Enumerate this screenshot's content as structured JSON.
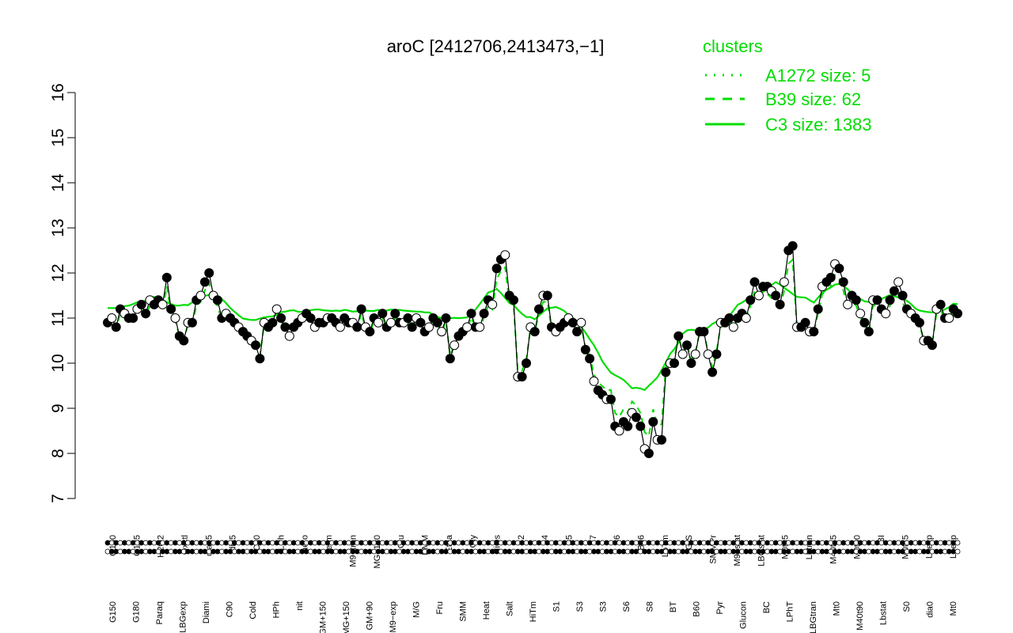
{
  "chart_data": {
    "type": "line",
    "title": "aroC [2412706,2413473,−1]",
    "ylim": [
      7,
      16
    ],
    "yticks": [
      7,
      8,
      9,
      10,
      11,
      12,
      13,
      14,
      15,
      16
    ],
    "xlabels_top": [
      "G150",
      "G135",
      "H2O2",
      "Oxctl",
      "dia15",
      "dia5",
      "C30",
      "LPh",
      "aero",
      "ferm",
      "M9−tran",
      "MG+120",
      "Glu",
      "BMM",
      "Etha",
      "Gly",
      "HiOs",
      "S2",
      "S4",
      "S5",
      "S7",
      "S6",
      "B36",
      "LoTm",
      "G/S",
      "SMMPr",
      "M9−stat",
      "LBGstat",
      "M0t45",
      "Lbtran",
      "M40t45",
      "M0t90",
      "BI",
      "M0t45",
      "Lbexp",
      "Lbexp"
    ],
    "xlabels_bottom": [
      "G150",
      "G180",
      "Paraq",
      "LBGexp",
      "Diami",
      "C90",
      "Cold",
      "HPh",
      "nit",
      "GM+150",
      "MG+150",
      "GM+90",
      "M9−exp",
      "M/G",
      "Fru",
      "SMM",
      "Heat",
      "Salt",
      "HiTm",
      "S1",
      "S3",
      "S3",
      "S6",
      "S8",
      "BT",
      "B60",
      "Pyr",
      "Glucon",
      "BC",
      "LPhT",
      "LBGtran",
      "Mt0",
      "M40t90",
      "Lbstat",
      "S0",
      "dia0",
      "Mt0"
    ],
    "legend": {
      "title": "clusters",
      "entries": [
        {
          "label": "A1272 size: 5",
          "style": "dotted"
        },
        {
          "label": "B39 size: 62",
          "style": "dashed"
        },
        {
          "label": "C3 size: 1383",
          "style": "solid"
        }
      ],
      "color": "#00dd00",
      "placement": "top-right"
    },
    "series_profile": [
      10.9,
      11.0,
      10.8,
      11.2,
      11.1,
      11.0,
      11.0,
      11.2,
      11.3,
      11.1,
      11.4,
      11.3,
      11.4,
      11.3,
      11.9,
      11.2,
      11.0,
      10.6,
      10.5,
      10.9,
      10.9,
      11.4,
      11.5,
      11.8,
      12.0,
      11.5,
      11.4,
      11.0,
      11.1,
      11.0,
      10.9,
      10.8,
      10.7,
      10.6,
      10.5,
      10.4,
      10.1,
      10.9,
      10.8,
      10.9,
      11.2,
      11.0,
      10.8,
      10.6,
      10.8,
      10.9,
      11.0,
      11.1,
      11.0,
      10.8,
      10.9,
      10.9,
      11.0,
      11.0,
      10.9,
      10.8,
      11.0,
      10.9,
      10.9,
      10.8,
      11.2,
      10.8,
      10.7,
      11.0,
      10.9,
      11.1,
      10.8,
      10.9,
      11.1,
      10.9,
      10.9,
      11.0,
      10.8,
      11.0,
      10.9,
      10.7,
      10.8,
      11.0,
      10.9,
      10.7,
      11.0,
      10.1,
      10.4,
      10.6,
      10.7,
      10.8,
      11.1,
      10.8,
      10.8,
      11.1,
      11.4,
      11.3,
      12.1,
      12.3,
      12.4,
      11.5,
      11.4,
      9.7,
      9.7,
      10.0,
      10.8,
      10.7,
      11.2,
      11.5,
      11.5,
      10.8,
      10.7,
      10.8,
      10.9,
      11.0,
      10.9,
      10.7,
      10.9,
      10.3,
      10.1,
      9.6,
      9.4,
      9.3,
      9.2,
      9.2,
      8.6,
      8.5,
      8.7,
      8.6,
      8.9,
      8.8,
      8.6,
      8.1,
      8.0,
      8.7,
      8.3,
      8.3,
      9.8,
      10.0,
      10.0,
      10.6,
      10.2,
      10.4,
      10.0,
      10.2,
      10.7,
      10.7,
      10.2,
      9.8,
      10.2,
      10.9,
      10.9,
      11.0,
      10.8,
      11.0,
      11.1,
      11.0,
      11.4,
      11.8,
      11.5,
      11.7,
      11.7,
      11.6,
      11.5,
      11.3,
      11.8,
      12.5,
      12.6,
      10.8,
      10.8,
      10.9,
      10.7,
      10.7,
      11.2,
      11.7,
      11.8,
      11.9,
      12.2,
      12.1,
      11.8,
      11.3,
      11.5,
      11.4,
      11.1,
      10.9,
      10.7,
      11.4,
      11.4,
      11.2,
      11.1,
      11.4,
      11.6,
      11.8,
      11.5,
      11.2,
      11.1,
      11.0,
      10.9,
      10.5,
      10.5,
      10.4,
      11.2,
      11.3,
      11.0,
      11.0,
      11.2,
      11.1
    ]
  }
}
